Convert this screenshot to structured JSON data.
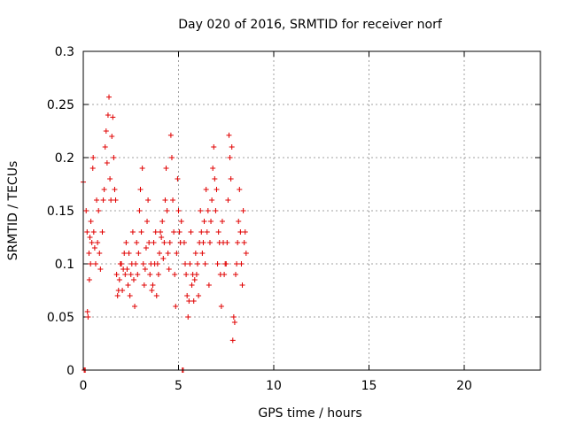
{
  "chart_data": {
    "type": "scatter",
    "title": "Day 020 of 2016, SRMTID for receiver norf",
    "xlabel": "GPS time / hours",
    "ylabel": "SRMTID / TECUs",
    "xlim": [
      0,
      24
    ],
    "ylim": [
      0,
      0.3
    ],
    "xticks": [
      0,
      5,
      10,
      15,
      20
    ],
    "xtick_labels": [
      "0",
      "5",
      "10",
      "15",
      "20"
    ],
    "yticks": [
      0,
      0.05,
      0.1,
      0.15,
      0.2,
      0.25,
      0.3
    ],
    "ytick_labels": [
      "0",
      "0.05",
      "0.1",
      "0.15",
      "0.2",
      "0.25",
      "0.3"
    ],
    "grid": true,
    "marker": "plus",
    "color": "#e00000",
    "series": [
      {
        "points": [
          [
            0.0,
            0.177
          ],
          [
            0.05,
            0.0
          ],
          [
            0.1,
            0.0
          ],
          [
            0.15,
            0.15
          ],
          [
            0.2,
            0.13
          ],
          [
            0.22,
            0.055
          ],
          [
            0.25,
            0.05
          ],
          [
            0.3,
            0.11
          ],
          [
            0.32,
            0.085
          ],
          [
            0.35,
            0.125
          ],
          [
            0.38,
            0.1
          ],
          [
            0.4,
            0.14
          ],
          [
            0.45,
            0.12
          ],
          [
            0.5,
            0.19
          ],
          [
            0.52,
            0.2
          ],
          [
            0.55,
            0.13
          ],
          [
            0.6,
            0.115
          ],
          [
            0.65,
            0.1
          ],
          [
            0.7,
            0.16
          ],
          [
            0.75,
            0.12
          ],
          [
            0.8,
            0.15
          ],
          [
            0.85,
            0.11
          ],
          [
            0.9,
            0.095
          ],
          [
            1.0,
            0.13
          ],
          [
            1.05,
            0.16
          ],
          [
            1.1,
            0.17
          ],
          [
            1.15,
            0.21
          ],
          [
            1.2,
            0.225
          ],
          [
            1.25,
            0.195
          ],
          [
            1.3,
            0.24
          ],
          [
            1.35,
            0.257
          ],
          [
            1.4,
            0.18
          ],
          [
            1.45,
            0.16
          ],
          [
            1.5,
            0.22
          ],
          [
            1.55,
            0.238
          ],
          [
            1.6,
            0.2
          ],
          [
            1.65,
            0.17
          ],
          [
            1.7,
            0.16
          ],
          [
            1.75,
            0.09
          ],
          [
            1.8,
            0.07
          ],
          [
            1.85,
            0.075
          ],
          [
            1.9,
            0.085
          ],
          [
            1.95,
            0.1
          ],
          [
            2.0,
            0.1
          ],
          [
            2.05,
            0.075
          ],
          [
            2.1,
            0.095
          ],
          [
            2.15,
            0.11
          ],
          [
            2.2,
            0.09
          ],
          [
            2.25,
            0.12
          ],
          [
            2.3,
            0.095
          ],
          [
            2.35,
            0.08
          ],
          [
            2.4,
            0.11
          ],
          [
            2.45,
            0.07
          ],
          [
            2.5,
            0.09
          ],
          [
            2.55,
            0.1
          ],
          [
            2.6,
            0.13
          ],
          [
            2.65,
            0.085
          ],
          [
            2.7,
            0.06
          ],
          [
            2.75,
            0.1
          ],
          [
            2.8,
            0.12
          ],
          [
            2.85,
            0.09
          ],
          [
            2.9,
            0.11
          ],
          [
            2.95,
            0.15
          ],
          [
            3.0,
            0.17
          ],
          [
            3.05,
            0.13
          ],
          [
            3.1,
            0.19
          ],
          [
            3.15,
            0.1
          ],
          [
            3.2,
            0.08
          ],
          [
            3.25,
            0.095
          ],
          [
            3.3,
            0.115
          ],
          [
            3.35,
            0.14
          ],
          [
            3.4,
            0.16
          ],
          [
            3.45,
            0.12
          ],
          [
            3.5,
            0.09
          ],
          [
            3.55,
            0.1
          ],
          [
            3.6,
            0.075
          ],
          [
            3.65,
            0.08
          ],
          [
            3.7,
            0.12
          ],
          [
            3.75,
            0.1
          ],
          [
            3.8,
            0.13
          ],
          [
            3.85,
            0.07
          ],
          [
            3.9,
            0.1
          ],
          [
            3.95,
            0.09
          ],
          [
            4.0,
            0.11
          ],
          [
            4.05,
            0.13
          ],
          [
            4.1,
            0.125
          ],
          [
            4.15,
            0.14
          ],
          [
            4.2,
            0.105
          ],
          [
            4.25,
            0.12
          ],
          [
            4.3,
            0.16
          ],
          [
            4.35,
            0.19
          ],
          [
            4.4,
            0.15
          ],
          [
            4.45,
            0.11
          ],
          [
            4.5,
            0.095
          ],
          [
            4.55,
            0.12
          ],
          [
            4.6,
            0.221
          ],
          [
            4.65,
            0.2
          ],
          [
            4.7,
            0.16
          ],
          [
            4.75,
            0.13
          ],
          [
            4.8,
            0.09
          ],
          [
            4.85,
            0.06
          ],
          [
            4.9,
            0.11
          ],
          [
            4.95,
            0.18
          ],
          [
            5.0,
            0.15
          ],
          [
            5.05,
            0.13
          ],
          [
            5.1,
            0.12
          ],
          [
            5.15,
            0.14
          ],
          [
            5.2,
            0.0
          ],
          [
            5.25,
            0.0
          ],
          [
            5.3,
            0.12
          ],
          [
            5.35,
            0.1
          ],
          [
            5.4,
            0.09
          ],
          [
            5.45,
            0.07
          ],
          [
            5.5,
            0.05
          ],
          [
            5.55,
            0.065
          ],
          [
            5.6,
            0.1
          ],
          [
            5.65,
            0.13
          ],
          [
            5.7,
            0.08
          ],
          [
            5.75,
            0.09
          ],
          [
            5.8,
            0.065
          ],
          [
            5.85,
            0.085
          ],
          [
            5.9,
            0.11
          ],
          [
            5.95,
            0.09
          ],
          [
            6.0,
            0.1
          ],
          [
            6.05,
            0.07
          ],
          [
            6.1,
            0.12
          ],
          [
            6.15,
            0.15
          ],
          [
            6.2,
            0.13
          ],
          [
            6.25,
            0.11
          ],
          [
            6.3,
            0.12
          ],
          [
            6.35,
            0.14
          ],
          [
            6.4,
            0.1
          ],
          [
            6.45,
            0.17
          ],
          [
            6.5,
            0.13
          ],
          [
            6.55,
            0.15
          ],
          [
            6.6,
            0.08
          ],
          [
            6.65,
            0.12
          ],
          [
            6.7,
            0.14
          ],
          [
            6.75,
            0.16
          ],
          [
            6.8,
            0.19
          ],
          [
            6.85,
            0.21
          ],
          [
            6.9,
            0.18
          ],
          [
            6.95,
            0.15
          ],
          [
            7.0,
            0.17
          ],
          [
            7.05,
            0.1
          ],
          [
            7.1,
            0.13
          ],
          [
            7.15,
            0.12
          ],
          [
            7.2,
            0.09
          ],
          [
            7.25,
            0.06
          ],
          [
            7.3,
            0.14
          ],
          [
            7.35,
            0.12
          ],
          [
            7.4,
            0.09
          ],
          [
            7.45,
            0.1
          ],
          [
            7.5,
            0.1
          ],
          [
            7.55,
            0.12
          ],
          [
            7.6,
            0.16
          ],
          [
            7.65,
            0.221
          ],
          [
            7.7,
            0.2
          ],
          [
            7.75,
            0.18
          ],
          [
            7.8,
            0.21
          ],
          [
            7.85,
            0.028
          ],
          [
            7.9,
            0.05
          ],
          [
            7.95,
            0.045
          ],
          [
            8.0,
            0.09
          ],
          [
            8.05,
            0.1
          ],
          [
            8.1,
            0.12
          ],
          [
            8.15,
            0.14
          ],
          [
            8.2,
            0.17
          ],
          [
            8.25,
            0.13
          ],
          [
            8.3,
            0.1
          ],
          [
            8.35,
            0.08
          ],
          [
            8.4,
            0.15
          ],
          [
            8.45,
            0.12
          ],
          [
            8.5,
            0.13
          ],
          [
            8.55,
            0.11
          ]
        ]
      }
    ]
  }
}
